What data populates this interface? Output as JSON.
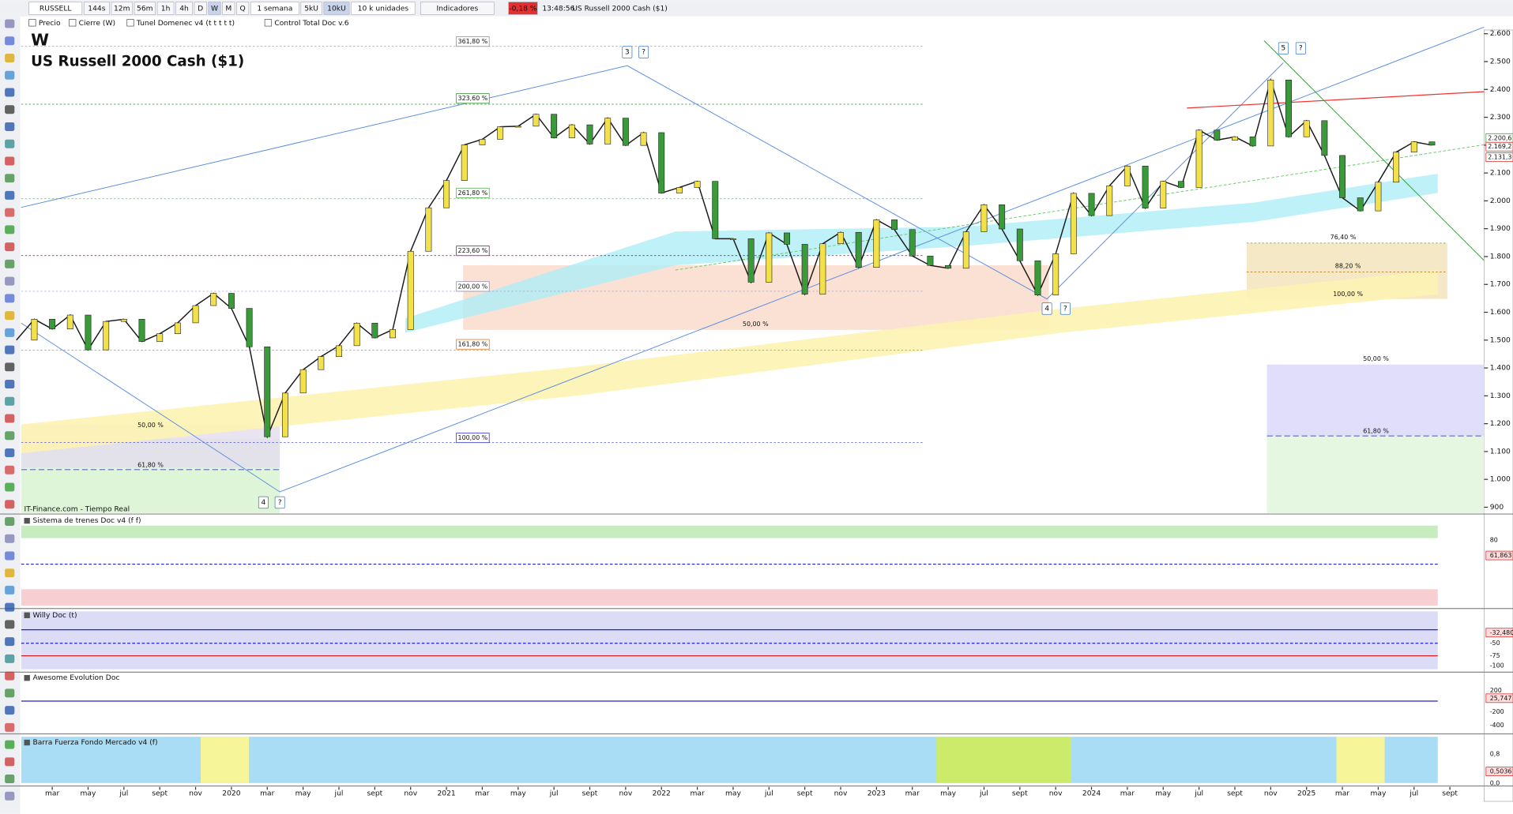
{
  "toolbar": {
    "symbol": "RUSSELL",
    "timeframes": [
      "144s",
      "12m",
      "56m",
      "1h",
      "4h",
      "D",
      "W",
      "M",
      "Q"
    ],
    "period": "1 semana",
    "units": [
      "5kU",
      "10kU"
    ],
    "unit_label": "10 k unidades",
    "indicators": "Indicadores",
    "change": "-0,18 %",
    "time": "13:48:56",
    "instrument": "US Russell 2000 Cash ($1)"
  },
  "legend": [
    "Precio",
    "Cierre (W)",
    "Tunel Domenec v4 (t t t t t)",
    "Control Total Doc v.6"
  ],
  "chart_data": {
    "type": "line",
    "wave_degree": "W",
    "title": "US Russell 2000 Cash ($1)",
    "source": "IT-Finance.com - Tiempo Real",
    "color": "#1a1a1a",
    "categories": [
      null,
      null,
      "mar",
      null,
      "may",
      null,
      "jul",
      null,
      "sept",
      null,
      "nov",
      null,
      "2020",
      null,
      "mar",
      null,
      "may",
      null,
      "jul",
      null,
      "sept",
      null,
      "nov",
      null,
      "2021",
      null,
      "mar",
      null,
      "may",
      null,
      "jul",
      null,
      "sept",
      null,
      "nov",
      null,
      "2022",
      null,
      "mar",
      null,
      "may",
      null,
      "jul",
      null,
      "sept",
      null,
      "nov",
      null,
      "2023",
      null,
      "mar",
      null,
      "may",
      null,
      "jul",
      null,
      "sept",
      null,
      "nov",
      null,
      "2024",
      null,
      "mar",
      null,
      "may",
      null,
      "jul",
      null,
      "sept",
      null,
      "nov",
      null,
      "2025",
      null,
      "mar",
      null,
      "may",
      null,
      "jul",
      null,
      "sept"
    ],
    "values": [
      1500,
      1575,
      1540,
      1590,
      1465,
      1567,
      1575,
      1495,
      1523,
      1562,
      1624,
      1668,
      1614,
      1476,
      1153,
      1310,
      1394,
      1441,
      1480,
      1561,
      1508,
      1538,
      1819,
      1975,
      2073,
      2201,
      2221,
      2266,
      2268,
      2311,
      2226,
      2273,
      2204,
      2297,
      2199,
      2245,
      2028,
      2048,
      2070,
      1864,
      1864,
      1708,
      1885,
      1844,
      1665,
      1846,
      1887,
      1761,
      1932,
      1897,
      1802,
      1768,
      1758,
      1889,
      1986,
      1899,
      1785,
      1662,
      1810,
      2027,
      1947,
      2054,
      2125,
      1974,
      2070,
      2048,
      2254,
      2218,
      2230,
      2197,
      2434,
      2230,
      2288,
      2163,
      2011,
      1964,
      2067,
      2175,
      2212,
      2200,
      null
    ],
    "ylim": [
      886,
      2610
    ],
    "yticks": [
      900,
      {
        "value": 1000,
        "label": "1.000"
      },
      {
        "value": 1100,
        "label": "1.100"
      },
      {
        "value": 1200,
        "label": "1.200"
      },
      {
        "value": 1300,
        "label": "1.300"
      },
      {
        "value": 1400,
        "label": "1.400"
      },
      {
        "value": 1500,
        "label": "1.500"
      },
      {
        "value": 1600,
        "label": "1.600"
      },
      {
        "value": 1700,
        "label": "1.700"
      },
      {
        "value": 1800,
        "label": "1.800"
      },
      {
        "value": 1900,
        "label": "1.900"
      },
      {
        "value": 2000,
        "label": "2.000"
      },
      {
        "value": 2100,
        "label": "2.100"
      },
      {
        "value": 2200,
        "label": "2.200"
      },
      {
        "value": 2300,
        "label": "2.300"
      },
      {
        "value": 2400,
        "label": "2.400"
      },
      {
        "value": 2500,
        "label": "2.500"
      },
      {
        "value": 2600,
        "label": "2.600"
      }
    ],
    "price_labels": [
      "2.200,6",
      "2.169,2",
      "2.131,3"
    ],
    "fib_labels": [
      "361,80 %",
      "323,60 %",
      "261,80 %",
      "223,60 %",
      "200,00 %",
      "161,80 %",
      "100,00 %",
      "50,00 %",
      "61,80 %",
      "50,00 %",
      "76,40 %",
      "88,20 %",
      "100,00 %",
      "50,00 %",
      "61,80 %"
    ],
    "wave_labels": [
      "3",
      "?",
      "4",
      "?",
      "4",
      "?",
      "5",
      "?"
    ]
  },
  "panels": [
    {
      "title": "Sistema de trenes Doc v4 (f f)",
      "labels": [
        "80",
        "61,863"
      ]
    },
    {
      "title": "Willy Doc (t)",
      "labels": [
        "-32,480",
        "-50",
        "-75",
        "-100"
      ]
    },
    {
      "title": "Awesome Evolution Doc",
      "labels": [
        "200",
        "25,747",
        "-200",
        "-400"
      ]
    },
    {
      "title": "Barra Fuerza Fondo Mercado v4 (f)",
      "labels": [
        "0,8",
        "0,5036",
        "0,0"
      ]
    }
  ]
}
